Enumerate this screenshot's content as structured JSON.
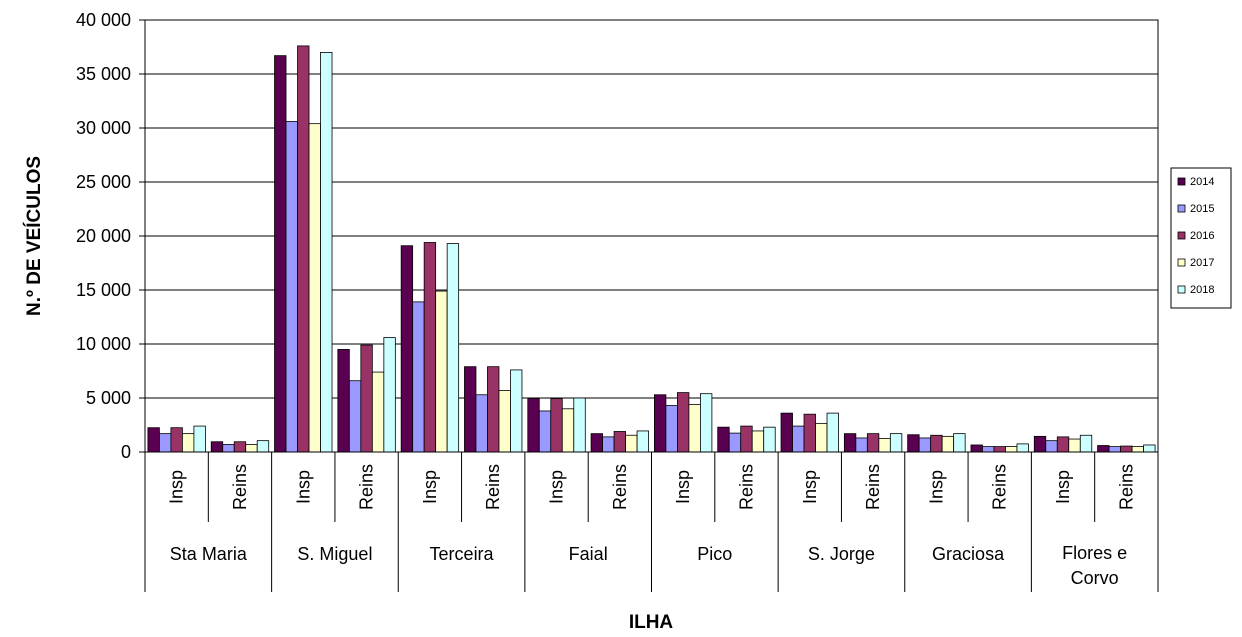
{
  "chart_data": {
    "type": "bar",
    "xlabel": "ILHA",
    "ylabel": "N.º DE VEÍCULOS",
    "ylim": [
      0,
      40000
    ],
    "yticks": [
      0,
      5000,
      10000,
      15000,
      20000,
      25000,
      30000,
      35000,
      40000
    ],
    "ytick_labels": [
      "0",
      "5 000",
      "10 000",
      "15 000",
      "20 000",
      "25 000",
      "30 000",
      "35 000",
      "40 000"
    ],
    "grid": true,
    "legend_position": "right",
    "groups": [
      {
        "label": "Sta Maria",
        "lines": [
          "Sta Maria"
        ]
      },
      {
        "label": "S. Miguel",
        "lines": [
          "S. Miguel"
        ]
      },
      {
        "label": "Terceira",
        "lines": [
          "Terceira"
        ]
      },
      {
        "label": "Faial",
        "lines": [
          "Faial"
        ]
      },
      {
        "label": "Pico",
        "lines": [
          "Pico"
        ]
      },
      {
        "label": "S. Jorge",
        "lines": [
          "S. Jorge"
        ]
      },
      {
        "label": "Graciosa",
        "lines": [
          "Graciosa"
        ]
      },
      {
        "label": "Flores e Corvo",
        "lines": [
          "Flores e",
          "Corvo"
        ]
      }
    ],
    "subcategories": [
      "Insp",
      "Reins"
    ],
    "series": [
      {
        "name": "2014",
        "color": "#5a0050",
        "values": [
          2250,
          950,
          36700,
          9500,
          19100,
          7900,
          4950,
          1700,
          5300,
          2300,
          3600,
          1700,
          1600,
          650,
          1450,
          600
        ]
      },
      {
        "name": "2015",
        "color": "#9999ff",
        "values": [
          1700,
          700,
          30600,
          6600,
          13900,
          5300,
          3800,
          1400,
          4300,
          1750,
          2400,
          1300,
          1300,
          500,
          1050,
          500
        ]
      },
      {
        "name": "2016",
        "color": "#993366",
        "values": [
          2250,
          950,
          37600,
          9900,
          19400,
          7900,
          4950,
          1900,
          5500,
          2400,
          3500,
          1700,
          1550,
          500,
          1400,
          550
        ]
      },
      {
        "name": "2017",
        "color": "#ffffcc",
        "values": [
          1700,
          700,
          30400,
          7400,
          14900,
          5700,
          4000,
          1550,
          4400,
          1950,
          2650,
          1250,
          1450,
          500,
          1200,
          500
        ]
      },
      {
        "name": "2018",
        "color": "#ccffff",
        "values": [
          2400,
          1050,
          37000,
          10600,
          19300,
          7600,
          5000,
          1950,
          5400,
          2300,
          3600,
          1700,
          1700,
          750,
          1550,
          650
        ]
      }
    ]
  }
}
